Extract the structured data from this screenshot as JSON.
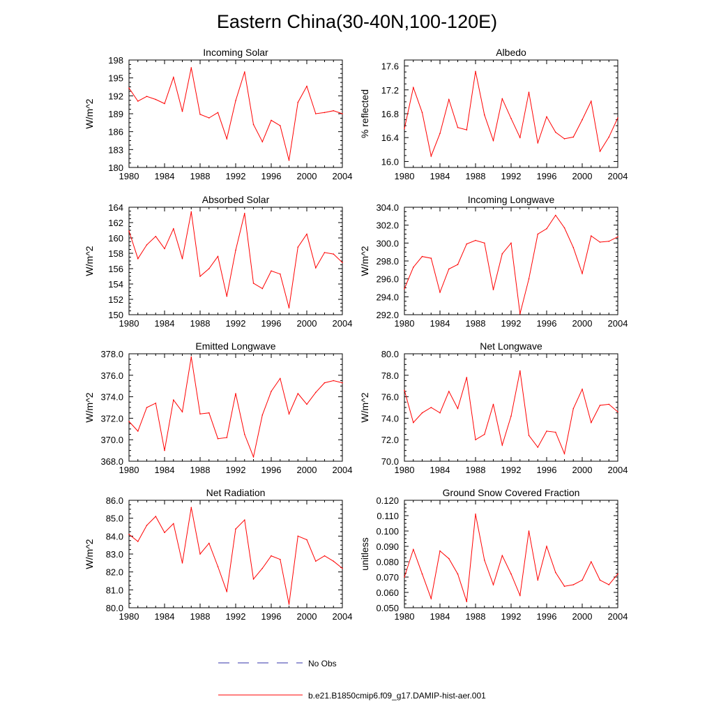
{
  "figure": {
    "title": "Eastern China(30-40N,100-120E)",
    "line_color": "#ff0000",
    "obs_color": "#3333aa"
  },
  "legend": {
    "obs_label": "No Obs",
    "model_label": "b.e21.B1850cmip6.f09_g17.DAMIP-hist-aer.001"
  },
  "chart_data": [
    {
      "type": "line",
      "title": "Incoming Solar",
      "xlabel": "",
      "ylabel": "W/m^2",
      "xlim": [
        1980,
        2004
      ],
      "ylim": [
        180,
        198
      ],
      "xticks": [
        "1980",
        "1984",
        "1988",
        "1992",
        "1996",
        "2000",
        "2004"
      ],
      "yticks": [
        "180",
        "183",
        "186",
        "189",
        "192",
        "195",
        "198"
      ],
      "x": [
        1980,
        1981,
        1982,
        1983,
        1984,
        1985,
        1986,
        1987,
        1988,
        1989,
        1990,
        1991,
        1992,
        1993,
        1994,
        1995,
        1996,
        1997,
        1998,
        1999,
        2000,
        2001,
        2002,
        2003,
        2004
      ],
      "series": [
        {
          "name": "b.e21.B1850cmip6.f09_g17.DAMIP-hist-aer.001",
          "values": [
            193.3,
            191.1,
            191.9,
            191.4,
            190.7,
            195.1,
            189.4,
            196.7,
            188.9,
            188.3,
            189.2,
            184.8,
            191.2,
            196.0,
            187.2,
            184.3,
            187.9,
            187.0,
            181.2,
            190.9,
            193.6,
            189.0,
            189.2,
            189.5,
            189.0
          ]
        }
      ]
    },
    {
      "type": "line",
      "title": "Albedo",
      "xlabel": "",
      "ylabel": "% reflected",
      "xlim": [
        1980,
        2004
      ],
      "ylim": [
        15.9,
        17.7
      ],
      "xticks": [
        "1980",
        "1984",
        "1988",
        "1992",
        "1996",
        "2000",
        "2004"
      ],
      "yticks": [
        "16.0",
        "16.4",
        "16.8",
        "17.2",
        "17.6"
      ],
      "x": [
        1980,
        1981,
        1982,
        1983,
        1984,
        1985,
        1986,
        1987,
        1988,
        1989,
        1990,
        1991,
        1992,
        1993,
        1994,
        1995,
        1996,
        1997,
        1998,
        1999,
        2000,
        2001,
        2002,
        2003,
        2004
      ],
      "series": [
        {
          "name": "b.e21.B1850cmip6.f09_g17.DAMIP-hist-aer.001",
          "values": [
            16.55,
            17.24,
            16.82,
            16.09,
            16.47,
            17.04,
            16.57,
            16.53,
            17.51,
            16.78,
            16.35,
            17.05,
            16.72,
            16.4,
            17.16,
            16.31,
            16.75,
            16.49,
            16.38,
            16.41,
            16.7,
            17.01,
            16.17,
            16.41,
            16.73
          ]
        }
      ]
    },
    {
      "type": "line",
      "title": "Absorbed Solar",
      "xlabel": "",
      "ylabel": "W/m^2",
      "xlim": [
        1980,
        2004
      ],
      "ylim": [
        150,
        164
      ],
      "xticks": [
        "1980",
        "1984",
        "1988",
        "1992",
        "1996",
        "2000",
        "2004"
      ],
      "yticks": [
        "150",
        "152",
        "154",
        "156",
        "158",
        "160",
        "162",
        "164"
      ],
      "x": [
        1980,
        1981,
        1982,
        1983,
        1984,
        1985,
        1986,
        1987,
        1988,
        1989,
        1990,
        1991,
        1992,
        1993,
        1994,
        1995,
        1996,
        1997,
        1998,
        1999,
        2000,
        2001,
        2002,
        2003,
        2004
      ],
      "series": [
        {
          "name": "b.e21.B1850cmip6.f09_g17.DAMIP-hist-aer.001",
          "values": [
            160.9,
            157.3,
            159.1,
            160.2,
            158.6,
            161.2,
            157.3,
            163.4,
            155.0,
            156.0,
            157.6,
            152.4,
            158.4,
            163.2,
            154.1,
            153.4,
            155.7,
            155.3,
            150.9,
            158.8,
            160.5,
            156.1,
            158.1,
            157.9,
            156.8
          ]
        }
      ]
    },
    {
      "type": "line",
      "title": "Incoming Longwave",
      "xlabel": "",
      "ylabel": "W/m^2",
      "xlim": [
        1980,
        2004
      ],
      "ylim": [
        292,
        304
      ],
      "xticks": [
        "1980",
        "1984",
        "1988",
        "1992",
        "1996",
        "2000",
        "2004"
      ],
      "yticks": [
        "292.0",
        "294.0",
        "296.0",
        "298.0",
        "300.0",
        "302.0",
        "304.0"
      ],
      "x": [
        1980,
        1981,
        1982,
        1983,
        1984,
        1985,
        1986,
        1987,
        1988,
        1989,
        1990,
        1991,
        1992,
        1993,
        1994,
        1995,
        1996,
        1997,
        1998,
        1999,
        2000,
        2001,
        2002,
        2003,
        2004
      ],
      "series": [
        {
          "name": "b.e21.B1850cmip6.f09_g17.DAMIP-hist-aer.001",
          "values": [
            294.9,
            297.3,
            298.5,
            298.3,
            294.5,
            297.1,
            297.6,
            299.9,
            300.3,
            300.0,
            294.8,
            298.8,
            300.0,
            292.1,
            296.0,
            301.0,
            301.6,
            303.1,
            301.7,
            299.5,
            296.6,
            300.8,
            300.1,
            300.2,
            300.7
          ]
        }
      ]
    },
    {
      "type": "line",
      "title": "Emitted Longwave",
      "xlabel": "",
      "ylabel": "W/m^2",
      "xlim": [
        1980,
        2004
      ],
      "ylim": [
        368,
        378
      ],
      "xticks": [
        "1980",
        "1984",
        "1988",
        "1992",
        "1996",
        "2000",
        "2004"
      ],
      "yticks": [
        "368.0",
        "370.0",
        "372.0",
        "374.0",
        "376.0",
        "378.0"
      ],
      "x": [
        1980,
        1981,
        1982,
        1983,
        1984,
        1985,
        1986,
        1987,
        1988,
        1989,
        1990,
        1991,
        1992,
        1993,
        1994,
        1995,
        1996,
        1997,
        1998,
        1999,
        2000,
        2001,
        2002,
        2003,
        2004
      ],
      "series": [
        {
          "name": "b.e21.B1850cmip6.f09_g17.DAMIP-hist-aer.001",
          "values": [
            371.7,
            370.8,
            373.0,
            373.4,
            369.0,
            373.7,
            372.6,
            377.7,
            372.4,
            372.5,
            370.1,
            370.2,
            374.3,
            370.5,
            368.4,
            372.3,
            374.5,
            375.7,
            372.4,
            374.3,
            373.3,
            374.4,
            375.3,
            375.5,
            375.3
          ]
        }
      ]
    },
    {
      "type": "line",
      "title": "Net Longwave",
      "xlabel": "",
      "ylabel": "W/m^2",
      "xlim": [
        1980,
        2004
      ],
      "ylim": [
        70,
        80
      ],
      "xticks": [
        "1980",
        "1984",
        "1988",
        "1992",
        "1996",
        "2000",
        "2004"
      ],
      "yticks": [
        "70.0",
        "72.0",
        "74.0",
        "76.0",
        "78.0",
        "80.0"
      ],
      "x": [
        1980,
        1981,
        1982,
        1983,
        1984,
        1985,
        1986,
        1987,
        1988,
        1989,
        1990,
        1991,
        1992,
        1993,
        1994,
        1995,
        1996,
        1997,
        1998,
        1999,
        2000,
        2001,
        2002,
        2003,
        2004
      ],
      "series": [
        {
          "name": "b.e21.B1850cmip6.f09_g17.DAMIP-hist-aer.001",
          "values": [
            76.6,
            73.6,
            74.5,
            75.0,
            74.5,
            76.5,
            74.9,
            77.8,
            72.0,
            72.5,
            75.3,
            71.5,
            74.2,
            78.4,
            72.4,
            71.3,
            72.8,
            72.7,
            70.7,
            74.9,
            76.7,
            73.6,
            75.2,
            75.3,
            74.6
          ]
        }
      ]
    },
    {
      "type": "line",
      "title": "Net Radiation",
      "xlabel": "",
      "ylabel": "W/m^2",
      "xlim": [
        1980,
        2004
      ],
      "ylim": [
        80,
        86
      ],
      "xticks": [
        "1980",
        "1984",
        "1988",
        "1992",
        "1996",
        "2000",
        "2004"
      ],
      "yticks": [
        "80.0",
        "81.0",
        "82.0",
        "83.0",
        "84.0",
        "85.0",
        "86.0"
      ],
      "x": [
        1980,
        1981,
        1982,
        1983,
        1984,
        1985,
        1986,
        1987,
        1988,
        1989,
        1990,
        1991,
        1992,
        1993,
        1994,
        1995,
        1996,
        1997,
        1998,
        1999,
        2000,
        2001,
        2002,
        2003,
        2004
      ],
      "series": [
        {
          "name": "b.e21.B1850cmip6.f09_g17.DAMIP-hist-aer.001",
          "values": [
            84.1,
            83.7,
            84.6,
            85.1,
            84.2,
            84.7,
            82.5,
            85.6,
            83.0,
            83.6,
            82.3,
            80.9,
            84.4,
            84.9,
            81.6,
            82.2,
            82.9,
            82.7,
            80.2,
            84.0,
            83.8,
            82.6,
            82.9,
            82.6,
            82.2
          ]
        }
      ]
    },
    {
      "type": "line",
      "title": "Ground Snow Covered Fraction",
      "xlabel": "",
      "ylabel": "unitless",
      "xlim": [
        1980,
        2004
      ],
      "ylim": [
        0.05,
        0.12
      ],
      "xticks": [
        "1980",
        "1984",
        "1988",
        "1992",
        "1996",
        "2000",
        "2004"
      ],
      "yticks": [
        "0.050",
        "0.060",
        "0.070",
        "0.080",
        "0.090",
        "0.100",
        "0.110",
        "0.120"
      ],
      "x": [
        1980,
        1981,
        1982,
        1983,
        1984,
        1985,
        1986,
        1987,
        1988,
        1989,
        1990,
        1991,
        1992,
        1993,
        1994,
        1995,
        1996,
        1997,
        1998,
        1999,
        2000,
        2001,
        2002,
        2003,
        2004
      ],
      "series": [
        {
          "name": "b.e21.B1850cmip6.f09_g17.DAMIP-hist-aer.001",
          "values": [
            0.07,
            0.088,
            0.072,
            0.056,
            0.087,
            0.082,
            0.072,
            0.054,
            0.111,
            0.081,
            0.065,
            0.084,
            0.072,
            0.058,
            0.1,
            0.068,
            0.09,
            0.073,
            0.064,
            0.065,
            0.068,
            0.08,
            0.068,
            0.065,
            0.072
          ]
        }
      ]
    }
  ]
}
